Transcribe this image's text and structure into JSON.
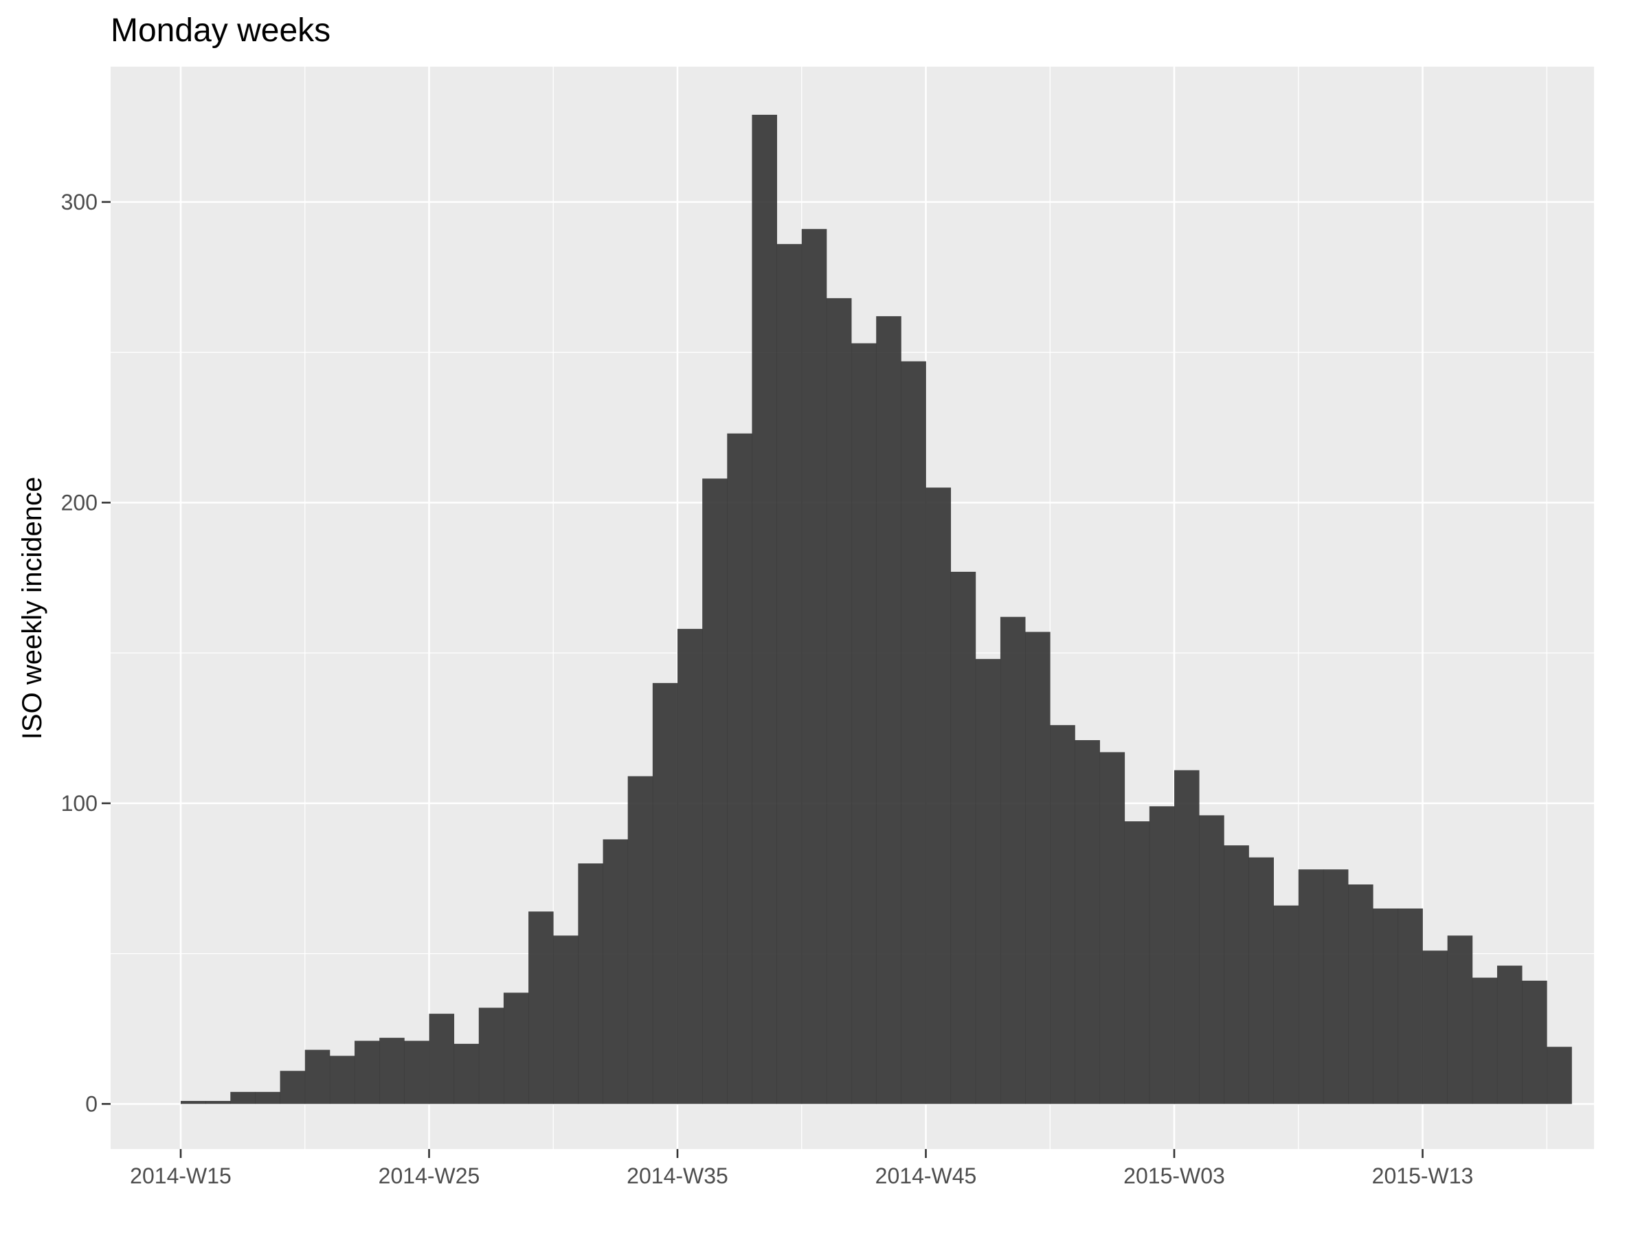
{
  "chart_data": {
    "type": "bar",
    "title": "Monday weeks",
    "xlabel": "",
    "ylabel": "ISO weekly incidence",
    "x_tick_labels": [
      "2014-W15",
      "2014-W25",
      "2014-W35",
      "2014-W45",
      "2015-W03",
      "2015-W13"
    ],
    "y_ticks": [
      0,
      100,
      200,
      300
    ],
    "ylim": [
      -15,
      345
    ],
    "grid": true,
    "legend": "none",
    "colors": {
      "panel": "#ebebeb",
      "grid": "#ffffff",
      "bar": "#333333"
    },
    "categories": [
      "2014-W15",
      "2014-W16",
      "2014-W17",
      "2014-W18",
      "2014-W19",
      "2014-W20",
      "2014-W21",
      "2014-W22",
      "2014-W23",
      "2014-W24",
      "2014-W25",
      "2014-W26",
      "2014-W27",
      "2014-W28",
      "2014-W29",
      "2014-W30",
      "2014-W31",
      "2014-W32",
      "2014-W33",
      "2014-W34",
      "2014-W35",
      "2014-W36",
      "2014-W37",
      "2014-W38",
      "2014-W39",
      "2014-W40",
      "2014-W41",
      "2014-W42",
      "2014-W43",
      "2014-W44",
      "2014-W45",
      "2014-W46",
      "2014-W47",
      "2014-W48",
      "2014-W49",
      "2014-W50",
      "2014-W51",
      "2014-W52",
      "2015-W01",
      "2015-W02",
      "2015-W03",
      "2015-W04",
      "2015-W05",
      "2015-W06",
      "2015-W07",
      "2015-W08",
      "2015-W09",
      "2015-W10",
      "2015-W11",
      "2015-W12",
      "2015-W13",
      "2015-W14",
      "2015-W15",
      "2015-W16",
      "2015-W17",
      "2015-W18"
    ],
    "values": [
      1,
      1,
      4,
      4,
      11,
      18,
      16,
      21,
      22,
      21,
      30,
      20,
      32,
      37,
      64,
      56,
      80,
      88,
      109,
      140,
      158,
      208,
      223,
      329,
      286,
      291,
      268,
      253,
      262,
      247,
      205,
      177,
      148,
      162,
      157,
      126,
      121,
      117,
      94,
      99,
      111,
      96,
      86,
      82,
      66,
      78,
      78,
      73,
      65,
      65,
      51,
      56,
      42,
      46,
      41,
      19
    ]
  }
}
